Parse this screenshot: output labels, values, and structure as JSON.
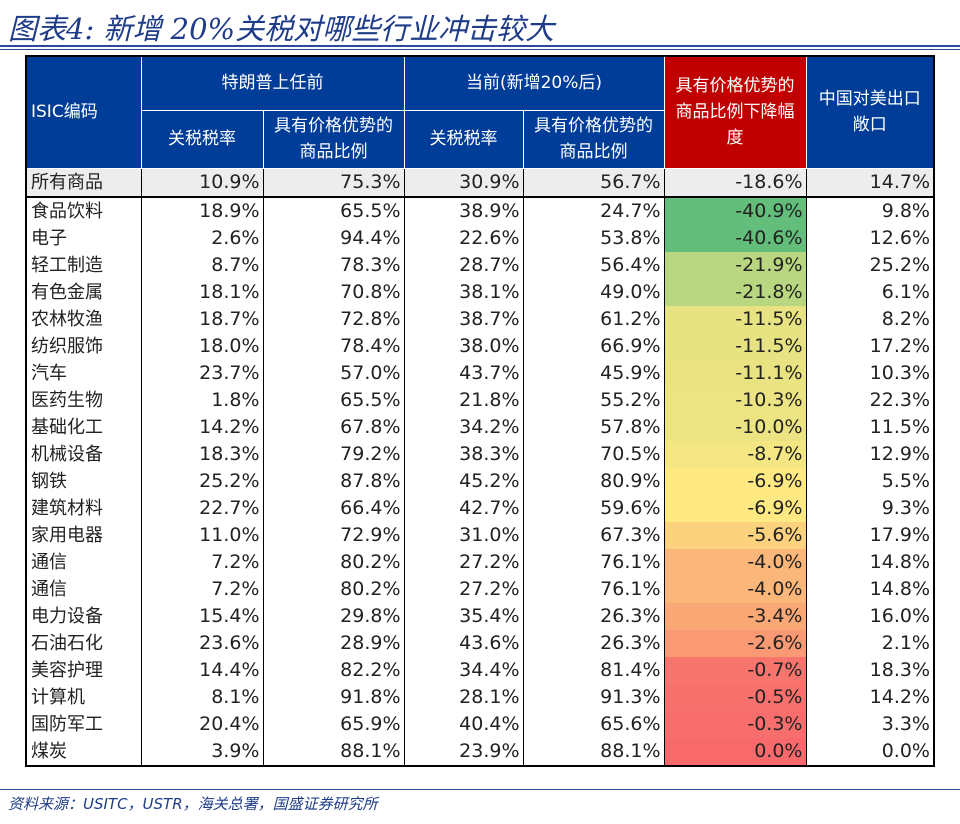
{
  "title": "图表4:  新增 20%关税对哪些行业冲击较大",
  "source": "资料来源：USITC，USTR，海关总署，国盛证券研究所",
  "header": {
    "isic": "ISIC编码",
    "group_before": "特朗普上任前",
    "group_now": "当前(新增20%后)",
    "tariff": "关税税率",
    "share": "具有价格优势的商品比例",
    "decline": "具有价格优势的商品比例下降幅度",
    "export": "中国对美出口敞口"
  },
  "rows": [
    {
      "name": "所有商品",
      "t0": "10.9%",
      "s0": "75.3%",
      "t1": "30.9%",
      "s1": "56.7%",
      "d": "-18.6%",
      "e": "14.7%",
      "color": "#ededed"
    },
    {
      "name": "食品饮料",
      "t0": "18.9%",
      "s0": "65.5%",
      "t1": "38.9%",
      "s1": "24.7%",
      "d": "-40.9%",
      "e": "9.8%",
      "color": "#63be7b"
    },
    {
      "name": "电子",
      "t0": "2.6%",
      "s0": "94.4%",
      "t1": "22.6%",
      "s1": "53.8%",
      "d": "-40.6%",
      "e": "12.6%",
      "color": "#63be7b"
    },
    {
      "name": "轻工制造",
      "t0": "8.7%",
      "s0": "78.3%",
      "t1": "28.7%",
      "s1": "56.4%",
      "d": "-21.9%",
      "e": "25.2%",
      "color": "#b9d780"
    },
    {
      "name": "有色金属",
      "t0": "18.1%",
      "s0": "70.8%",
      "t1": "38.1%",
      "s1": "49.0%",
      "d": "-21.8%",
      "e": "6.1%",
      "color": "#b9d780"
    },
    {
      "name": "农林牧渔",
      "t0": "18.7%",
      "s0": "72.8%",
      "t1": "38.7%",
      "s1": "61.2%",
      "d": "-11.5%",
      "e": "8.2%",
      "color": "#e8e382"
    },
    {
      "name": "纺织服饰",
      "t0": "18.0%",
      "s0": "78.4%",
      "t1": "38.0%",
      "s1": "66.9%",
      "d": "-11.5%",
      "e": "17.2%",
      "color": "#e8e382"
    },
    {
      "name": "汽车",
      "t0": "23.7%",
      "s0": "57.0%",
      "t1": "43.7%",
      "s1": "45.9%",
      "d": "-11.1%",
      "e": "10.3%",
      "color": "#eae382"
    },
    {
      "name": "医药生物",
      "t0": "1.8%",
      "s0": "65.5%",
      "t1": "21.8%",
      "s1": "55.2%",
      "d": "-10.3%",
      "e": "22.3%",
      "color": "#ece482"
    },
    {
      "name": "基础化工",
      "t0": "14.2%",
      "s0": "67.8%",
      "t1": "34.2%",
      "s1": "57.8%",
      "d": "-10.0%",
      "e": "11.5%",
      "color": "#ece482"
    },
    {
      "name": "机械设备",
      "t0": "18.3%",
      "s0": "79.2%",
      "t1": "38.3%",
      "s1": "70.5%",
      "d": "-8.7%",
      "e": "12.9%",
      "color": "#f3e683"
    },
    {
      "name": "钢铁",
      "t0": "25.2%",
      "s0": "87.8%",
      "t1": "45.2%",
      "s1": "80.9%",
      "d": "-6.9%",
      "e": "5.5%",
      "color": "#fee983"
    },
    {
      "name": "建筑材料",
      "t0": "22.7%",
      "s0": "66.4%",
      "t1": "42.7%",
      "s1": "59.6%",
      "d": "-6.9%",
      "e": "9.3%",
      "color": "#fee983"
    },
    {
      "name": "家用电器",
      "t0": "11.0%",
      "s0": "72.9%",
      "t1": "31.0%",
      "s1": "67.3%",
      "d": "-5.6%",
      "e": "17.9%",
      "color": "#fdd27f"
    },
    {
      "name": "通信",
      "t0": "7.2%",
      "s0": "80.2%",
      "t1": "27.2%",
      "s1": "76.1%",
      "d": "-4.0%",
      "e": "14.8%",
      "color": "#fbb77a"
    },
    {
      "name": "通信",
      "t0": "7.2%",
      "s0": "80.2%",
      "t1": "27.2%",
      "s1": "76.1%",
      "d": "-4.0%",
      "e": "14.8%",
      "color": "#fbb77a"
    },
    {
      "name": "电力设备",
      "t0": "15.4%",
      "s0": "29.8%",
      "t1": "35.4%",
      "s1": "26.3%",
      "d": "-3.4%",
      "e": "16.0%",
      "color": "#fba877"
    },
    {
      "name": "石油石化",
      "t0": "23.6%",
      "s0": "28.9%",
      "t1": "43.6%",
      "s1": "26.3%",
      "d": "-2.6%",
      "e": "2.1%",
      "color": "#fa9a74"
    },
    {
      "name": "美容护理",
      "t0": "14.4%",
      "s0": "82.2%",
      "t1": "34.4%",
      "s1": "81.4%",
      "d": "-0.7%",
      "e": "18.3%",
      "color": "#f8756d"
    },
    {
      "name": "计算机",
      "t0": "8.1%",
      "s0": "91.8%",
      "t1": "28.1%",
      "s1": "91.3%",
      "d": "-0.5%",
      "e": "14.2%",
      "color": "#f8716c"
    },
    {
      "name": "国防军工",
      "t0": "20.4%",
      "s0": "65.9%",
      "t1": "40.4%",
      "s1": "65.6%",
      "d": "-0.3%",
      "e": "3.3%",
      "color": "#f86e6c"
    },
    {
      "name": "煤炭",
      "t0": "3.9%",
      "s0": "88.1%",
      "t1": "23.9%",
      "s1": "88.1%",
      "d": "0.0%",
      "e": "0.0%",
      "color": "#f8696b"
    }
  ]
}
